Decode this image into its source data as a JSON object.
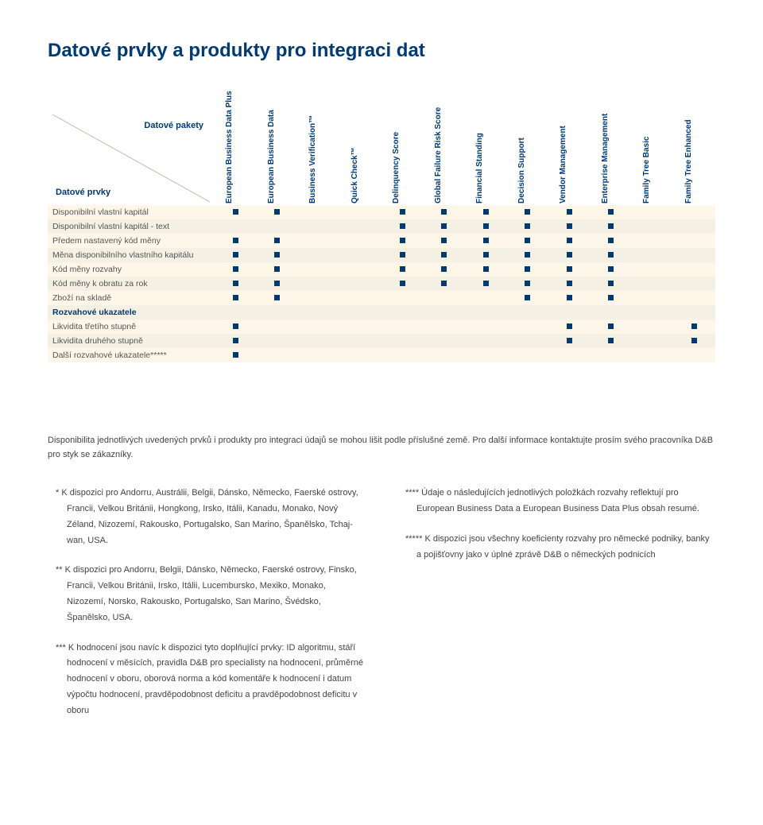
{
  "title": "Datové prvky a produkty pro integraci dat",
  "corner_top": "Datové pakety",
  "corner_bottom": "Datové prvky",
  "columns": [
    "European Business Data Plus",
    "European Business Data",
    "Business Verification™",
    "Quick Check™",
    "Delinquency Score",
    "Global Failure Risk Score",
    "Financial Standing",
    "Decision Support",
    "Vendor Management",
    "Enterprise Management",
    "Family Tree Basic",
    "Family Tree Enhanced"
  ],
  "rows": [
    {
      "label": "Disponibilní vlastní kapitál",
      "stripe": "a",
      "marks": [
        1,
        1,
        0,
        0,
        1,
        1,
        1,
        1,
        1,
        1,
        0,
        0
      ]
    },
    {
      "label": "Disponibilní vlastní kapitál - text",
      "stripe": "b",
      "marks": [
        0,
        0,
        0,
        0,
        1,
        1,
        1,
        1,
        1,
        1,
        0,
        0
      ]
    },
    {
      "label": "Předem nastavený kód měny",
      "stripe": "a",
      "marks": [
        1,
        1,
        0,
        0,
        1,
        1,
        1,
        1,
        1,
        1,
        0,
        0
      ]
    },
    {
      "label": "Měna disponibilního vlastního kapitálu",
      "stripe": "b",
      "marks": [
        1,
        1,
        0,
        0,
        1,
        1,
        1,
        1,
        1,
        1,
        0,
        0
      ]
    },
    {
      "label": "Kód měny rozvahy",
      "stripe": "a",
      "marks": [
        1,
        1,
        0,
        0,
        1,
        1,
        1,
        1,
        1,
        1,
        0,
        0
      ]
    },
    {
      "label": "Kód měny k obratu za rok",
      "stripe": "b",
      "marks": [
        1,
        1,
        0,
        0,
        1,
        1,
        1,
        1,
        1,
        1,
        0,
        0
      ]
    },
    {
      "label": "Zboží na skladě",
      "stripe": "a",
      "marks": [
        1,
        1,
        0,
        0,
        0,
        0,
        0,
        1,
        1,
        1,
        0,
        0
      ]
    },
    {
      "label": "Rozvahové ukazatele",
      "stripe": "b",
      "section": true,
      "marks": [
        0,
        0,
        0,
        0,
        0,
        0,
        0,
        0,
        0,
        0,
        0,
        0
      ]
    },
    {
      "label": "Likvidita třetího stupně",
      "stripe": "a",
      "marks": [
        1,
        0,
        0,
        0,
        0,
        0,
        0,
        0,
        1,
        1,
        0,
        1
      ]
    },
    {
      "label": "Likvidita druhého stupně",
      "stripe": "b",
      "marks": [
        1,
        0,
        0,
        0,
        0,
        0,
        0,
        0,
        1,
        1,
        0,
        1
      ]
    },
    {
      "label": "Další rozvahové ukazatele*****",
      "stripe": "a",
      "marks": [
        1,
        0,
        0,
        0,
        0,
        0,
        0,
        0,
        0,
        0,
        0,
        0
      ]
    }
  ],
  "note": "Disponibilita jednotlivých uvedených prvků i produkty pro integraci údajů se mohou lišit podle příslušné země. Pro další informace kontaktujte prosím svého pracovníka D&B pro styk se zákazníky.",
  "footnotes_left": [
    "* K dispozici pro Andorru, Austrálii, Belgii, Dánsko, Německo, Faerské ostrovy, Francii, Velkou Británii, Hongkong, Irsko, Itálii, Kanadu, Monako, Nový Zéland, Nizozemí, Rakousko, Portugalsko, San Marino, Španělsko, Tchaj-wan, USA.",
    "** K dispozici pro Andorru, Belgii, Dánsko, Německo, Faerské ostrovy, Finsko, Francii, Velkou Británii, Irsko, Itálii, Lucembursko, Mexiko, Monako, Nizozemí, Norsko, Rakousko, Portugalsko, San Marino, Švédsko, Španělsko, USA.",
    "*** K hodnocení jsou navíc k dispozici tyto doplňující prvky: ID algoritmu, stáří hodnocení v měsících, pravidla D&B pro specialisty na hodnocení, průměrné hodnocení v oboru, oborová norma a kód komentáře k hodnocení i datum výpočtu hodnocení, pravděpodobnost deficitu a pravděpodobnost deficitu v oboru"
  ],
  "footnotes_right": [
    "**** Údaje o následujících jednotlivých položkách rozvahy reflektují pro European Business Data a European Business Data Plus obsah resumé.",
    "***** K dispozici jsou všechny koeficienty rozvahy pro německé podniky, banky a pojišťovny jako v úplné zprávě D&B o německých podnicích"
  ],
  "colors": {
    "heading": "#003a70",
    "marker": "#003a70",
    "stripe_a": "#fdf6e9",
    "stripe_b": "#f5f0e4"
  }
}
